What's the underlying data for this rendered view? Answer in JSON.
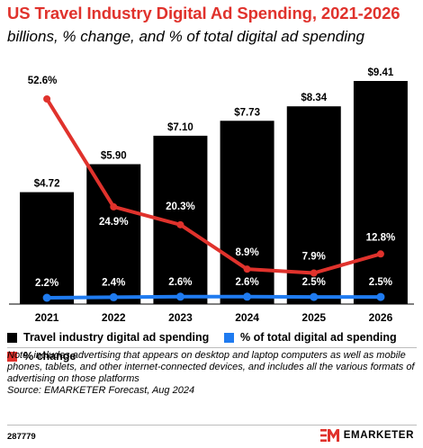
{
  "header": {
    "title": "US Travel Industry Digital Ad Spending, 2021-2026",
    "subtitle": "billions, % change, and % of total digital ad spending"
  },
  "chart_data": {
    "type": "bar",
    "categories": [
      "2021",
      "2022",
      "2023",
      "2024",
      "2025",
      "2026"
    ],
    "series": [
      {
        "name": "Travel industry digital ad spending",
        "type": "bar",
        "values": [
          4.72,
          5.9,
          7.1,
          7.73,
          8.34,
          9.41
        ],
        "labels": [
          "$4.72",
          "$5.90",
          "$7.10",
          "$7.73",
          "$8.34",
          "$9.41"
        ],
        "color": "#000000"
      },
      {
        "name": "% change",
        "type": "line",
        "values": [
          52.6,
          24.9,
          20.3,
          8.9,
          7.9,
          12.8
        ],
        "labels": [
          "52.6%",
          "24.9%",
          "20.3%",
          "8.9%",
          "7.9%",
          "12.8%"
        ],
        "color": "#e0322c"
      },
      {
        "name": "% of total digital ad spending",
        "type": "line",
        "values": [
          2.2,
          2.4,
          2.6,
          2.6,
          2.5,
          2.5
        ],
        "labels": [
          "2.2%",
          "2.4%",
          "2.6%",
          "2.6%",
          "2.5%",
          "2.5%"
        ],
        "color": "#1f7bf0"
      }
    ],
    "grid": false,
    "legend_position": "bottom"
  },
  "legend": {
    "items": [
      {
        "label": "Travel industry digital ad spending",
        "color": "#000000"
      },
      {
        "label": "% of total digital ad spending",
        "color": "#1f7bf0"
      },
      {
        "label": "% change",
        "color": "#e0322c"
      }
    ]
  },
  "note": {
    "text": "Note: includes advertising that appears on desktop and laptop computers as well as mobile phones, tablets, and other internet-connected devices, and includes all the various formats of advertising on those platforms",
    "source": "Source: EMARKETER Forecast, Aug 2024"
  },
  "footer": {
    "chart_id": "287779",
    "brand_name": "EMARKETER",
    "brand_color": "#e0322c"
  }
}
